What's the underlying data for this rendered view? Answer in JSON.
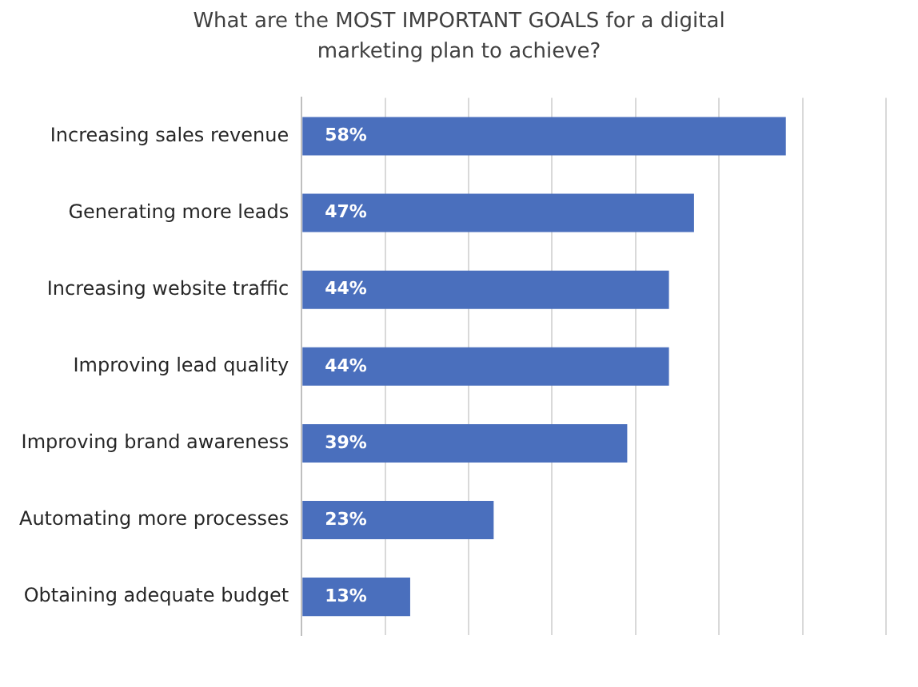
{
  "chart_data": {
    "type": "bar",
    "orientation": "horizontal",
    "title": "What are the MOST IMPORTANT GOALS for a digital marketing plan to achieve?",
    "categories": [
      "Increasing sales revenue",
      "Generating more leads",
      "Increasing website traffic",
      "Improving lead quality",
      "Improving brand awareness",
      "Automating more processes",
      "Obtaining adequate budget"
    ],
    "values": [
      58,
      47,
      44,
      44,
      39,
      23,
      13
    ],
    "value_labels": [
      "58%",
      "47%",
      "44%",
      "44%",
      "39%",
      "23%",
      "13%"
    ],
    "color": "#4a6fbd",
    "xlim": [
      0,
      70
    ],
    "xticks": [
      {
        "value": 0,
        "label": null
      },
      {
        "value": 10,
        "label": null
      },
      {
        "value": 20,
        "label": null
      },
      {
        "value": 30,
        "label": null
      },
      {
        "value": 40,
        "label": null
      },
      {
        "value": 50,
        "label": null
      },
      {
        "value": 60,
        "label": null
      },
      {
        "value": 70,
        "label": null
      }
    ],
    "grid": "x",
    "legend": false
  }
}
